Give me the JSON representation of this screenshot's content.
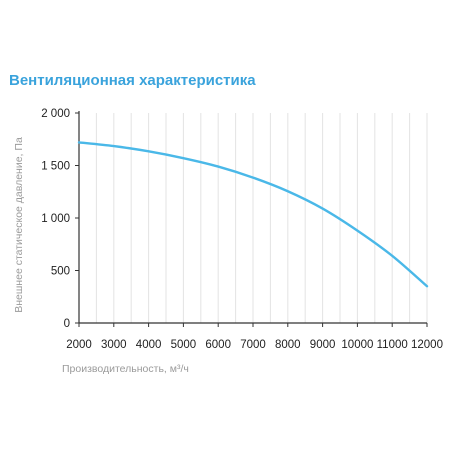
{
  "chart_data": {
    "type": "line",
    "title": "Вентиляционная характеристика",
    "xlabel": "Производительность, м³/ч",
    "ylabel": "Внешнее статическое давление, Па",
    "x_ticks": [
      "2000",
      "3000",
      "4000",
      "5000",
      "6000",
      "7000",
      "8000",
      "9000",
      "10000",
      "11000",
      "12000"
    ],
    "y_ticks": [
      "0",
      "500",
      "1 000",
      "1 500",
      "2 000"
    ],
    "xlim": [
      2000,
      12000
    ],
    "ylim": [
      0,
      2000
    ],
    "grid": "vertical",
    "series": [
      {
        "color": "#4ab8e8",
        "x": [
          2000,
          3000,
          4000,
          5000,
          6000,
          7000,
          8000,
          9000,
          10000,
          11000,
          12000
        ],
        "y": [
          1720,
          1685,
          1635,
          1570,
          1490,
          1385,
          1255,
          1090,
          880,
          640,
          350
        ]
      }
    ]
  },
  "colors": {
    "title": "#3aa3dc",
    "axis": "#333333",
    "grid": "#e3e3e3",
    "axis_title": "#9a9a9a"
  }
}
